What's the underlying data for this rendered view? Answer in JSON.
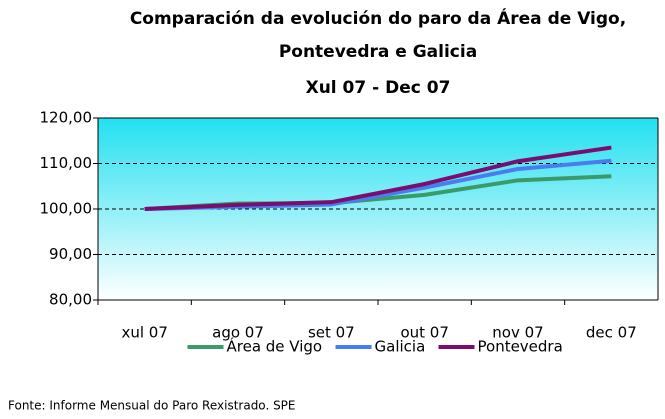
{
  "chart_data": {
    "type": "line",
    "title": [
      "Comparación da evolución do paro da Área de Vigo,",
      "Pontevedra e Galicia"
    ],
    "subtitle": "Xul 07 - Dec 07",
    "categories": [
      "xul 07",
      "ago 07",
      "set 07",
      "out 07",
      "nov 07",
      "dec 07"
    ],
    "series": [
      {
        "name": "Área de Vigo",
        "color": "#3a9a6a",
        "values": [
          100,
          101.2,
          101.3,
          103.1,
          106.3,
          107.2
        ]
      },
      {
        "name": "Galicia",
        "color": "#4a7cf0",
        "values": [
          100,
          100.5,
          101.0,
          104.7,
          108.8,
          110.6
        ]
      },
      {
        "name": "Pontevedra",
        "color": "#7a0d6f",
        "values": [
          100,
          100.9,
          101.5,
          105.5,
          110.5,
          113.5
        ]
      }
    ],
    "ylim": [
      80,
      120
    ],
    "yticks": [
      {
        "value": 80,
        "label": "80,00"
      },
      {
        "value": 90,
        "label": "90,00"
      },
      {
        "value": 100,
        "label": "100,00"
      },
      {
        "value": 110,
        "label": "110,00"
      },
      {
        "value": 120,
        "label": "120,00"
      }
    ],
    "grid": true,
    "legend": "bottom",
    "source": "Fonte: Informe Mensual do Paro Rexistrado. SPE"
  }
}
